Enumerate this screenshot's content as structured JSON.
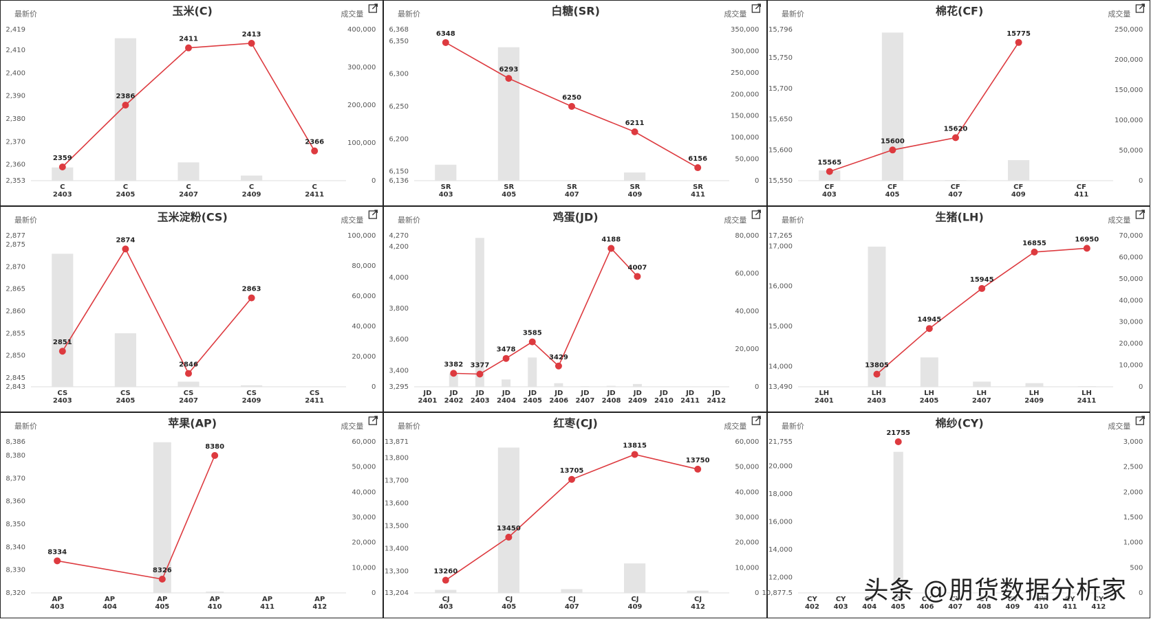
{
  "chart_data": [
    {
      "type": "bar-line",
      "title": "玉米(C)",
      "y_label": "最新价",
      "y2_label": "成交量",
      "categories": [
        "C\n2403",
        "C\n2405",
        "C\n2407",
        "C\n2409",
        "C\n2411"
      ],
      "series": [
        {
          "type": "bar",
          "axis": "y2",
          "color": "#e4e4e4",
          "values": [
            35000,
            377000,
            48500,
            13600,
            1000
          ]
        },
        {
          "type": "line",
          "color": "#dd3a3f",
          "values": [
            2359,
            2386,
            2411,
            2413,
            2366
          ]
        }
      ],
      "connect_nulls": true,
      "ylim": [
        2353,
        2419
      ],
      "yticks": [
        {
          "value": 2353,
          "label": "2,353"
        },
        {
          "value": 2360,
          "label": "2,360"
        },
        {
          "value": 2370,
          "label": "2,370"
        },
        {
          "value": 2380,
          "label": "2,380"
        },
        {
          "value": 2390,
          "label": "2,390"
        },
        {
          "value": 2400,
          "label": "2,400"
        },
        {
          "value": 2410,
          "label": "2,410"
        },
        {
          "value": 2419,
          "label": "2,419"
        }
      ],
      "y2lim": [
        0,
        400000
      ],
      "y2ticks": [
        0,
        {
          "value": 100000,
          "label": "100,000"
        },
        {
          "value": 200000,
          "label": "200,000"
        },
        {
          "value": 300000,
          "label": "300,000"
        },
        {
          "value": 400000,
          "label": "400,000"
        }
      ]
    },
    {
      "type": "bar-line",
      "title": "白糖(SR)",
      "y_label": "最新价",
      "y2_label": "成交量",
      "categories": [
        "SR\n403",
        "SR\n405",
        "SR\n407",
        "SR\n409",
        "SR\n411"
      ],
      "series": [
        {
          "type": "bar",
          "axis": "y2",
          "color": "#e4e4e4",
          "values": [
            37000,
            309000,
            1000,
            19000,
            500
          ]
        },
        {
          "type": "line",
          "color": "#dd3a3f",
          "values": [
            6348,
            6293,
            6250,
            6211,
            6156
          ]
        }
      ],
      "connect_nulls": true,
      "ylim": [
        6136,
        6368
      ],
      "yticks": [
        {
          "value": 6136,
          "label": "6,136"
        },
        {
          "value": 6150,
          "label": "6,150"
        },
        {
          "value": 6200,
          "label": "6,200"
        },
        {
          "value": 6250,
          "label": "6,250"
        },
        {
          "value": 6300,
          "label": "6,300"
        },
        {
          "value": 6350,
          "label": "6,350"
        },
        {
          "value": 6368,
          "label": "6,368"
        }
      ],
      "y2lim": [
        0,
        350000
      ],
      "y2ticks": [
        0,
        {
          "value": 50000,
          "label": "50,000"
        },
        {
          "value": 100000,
          "label": "100,000"
        },
        {
          "value": 150000,
          "label": "150,000"
        },
        {
          "value": 200000,
          "label": "200,000"
        },
        {
          "value": 250000,
          "label": "250,000"
        },
        {
          "value": 300000,
          "label": "300,000"
        },
        {
          "value": 350000,
          "label": "350,000"
        }
      ]
    },
    {
      "type": "bar-line",
      "title": "棉花(CF)",
      "y_label": "最新价",
      "y2_label": "成交量",
      "categories": [
        "CF\n403",
        "CF\n405",
        "CF\n407",
        "CF\n409",
        "CF\n411"
      ],
      "series": [
        {
          "type": "bar",
          "axis": "y2",
          "color": "#e4e4e4",
          "values": [
            17000,
            245000,
            1000,
            34000,
            0
          ]
        },
        {
          "type": "line",
          "color": "#dd3a3f",
          "values": [
            15565,
            15600,
            15620,
            15775,
            null
          ]
        }
      ],
      "connect_nulls": true,
      "ylim": [
        15550,
        15796
      ],
      "yticks": [
        {
          "value": 15550,
          "label": "15,550"
        },
        {
          "value": 15600,
          "label": "15,600"
        },
        {
          "value": 15650,
          "label": "15,650"
        },
        {
          "value": 15700,
          "label": "15,700"
        },
        {
          "value": 15750,
          "label": "15,750"
        },
        {
          "value": 15796,
          "label": "15,796"
        }
      ],
      "y2lim": [
        0,
        250000
      ],
      "y2ticks": [
        0,
        {
          "value": 50000,
          "label": "50,000"
        },
        {
          "value": 100000,
          "label": "100,000"
        },
        {
          "value": 150000,
          "label": "150,000"
        },
        {
          "value": 200000,
          "label": "200,000"
        },
        {
          "value": 250000,
          "label": "250,000"
        }
      ]
    },
    {
      "type": "bar-line",
      "title": "玉米淀粉(CS)",
      "y_label": "最新价",
      "y2_label": "成交量",
      "categories": [
        "CS\n2403",
        "CS\n2405",
        "CS\n2407",
        "CS\n2409",
        "CS\n2411"
      ],
      "series": [
        {
          "type": "bar",
          "axis": "y2",
          "color": "#e4e4e4",
          "values": [
            88000,
            35400,
            3400,
            1000,
            0
          ]
        },
        {
          "type": "line",
          "color": "#dd3a3f",
          "values": [
            2851,
            2874,
            2846,
            2863,
            null
          ]
        }
      ],
      "connect_nulls": true,
      "ylim": [
        2843,
        2877
      ],
      "yticks": [
        {
          "value": 2843,
          "label": "2,843"
        },
        {
          "value": 2845,
          "label": "2,845"
        },
        {
          "value": 2850,
          "label": "2,850"
        },
        {
          "value": 2855,
          "label": "2,855"
        },
        {
          "value": 2860,
          "label": "2,860"
        },
        {
          "value": 2865,
          "label": "2,865"
        },
        {
          "value": 2870,
          "label": "2,870"
        },
        {
          "value": 2875,
          "label": "2,875"
        },
        {
          "value": 2877,
          "label": "2,877"
        }
      ],
      "y2lim": [
        0,
        100000
      ],
      "y2ticks": [
        0,
        {
          "value": 20000,
          "label": "20,000"
        },
        {
          "value": 40000,
          "label": "40,000"
        },
        {
          "value": 60000,
          "label": "60,000"
        },
        {
          "value": 80000,
          "label": "80,000"
        },
        {
          "value": 100000,
          "label": "100,000"
        }
      ]
    },
    {
      "type": "bar-line",
      "title": "鸡蛋(JD)",
      "y_label": "最新价",
      "y2_label": "成交量",
      "categories": [
        "JD\n2401",
        "JD\n2402",
        "JD\n2403",
        "JD\n2404",
        "JD\n2405",
        "JD\n2406",
        "JD\n2407",
        "JD\n2408",
        "JD\n2409",
        "JD\n2410",
        "JD\n2411",
        "JD\n2412"
      ],
      "series": [
        {
          "type": "bar",
          "axis": "y2",
          "color": "#e4e4e4",
          "values": [
            0,
            7000,
            78800,
            3900,
            15500,
            1900,
            300,
            500,
            1500,
            0,
            0,
            0
          ]
        },
        {
          "type": "line",
          "color": "#dd3a3f",
          "values": [
            null,
            3382,
            3377,
            3478,
            3585,
            3429,
            null,
            4188,
            4007,
            null,
            null,
            null
          ]
        }
      ],
      "connect_nulls": true,
      "ylim": [
        3295,
        4270
      ],
      "yticks": [
        {
          "value": 3295,
          "label": "3,295"
        },
        {
          "value": 3400,
          "label": "3,400"
        },
        {
          "value": 3600,
          "label": "3,600"
        },
        {
          "value": 3800,
          "label": "3,800"
        },
        {
          "value": 4000,
          "label": "4,000"
        },
        {
          "value": 4200,
          "label": "4,200"
        },
        {
          "value": 4270,
          "label": "4,270"
        }
      ],
      "y2lim": [
        0,
        80000
      ],
      "y2ticks": [
        0,
        {
          "value": 20000,
          "label": "20,000"
        },
        {
          "value": 40000,
          "label": "40,000"
        },
        {
          "value": 60000,
          "label": "60,000"
        },
        {
          "value": 80000,
          "label": "80,000"
        }
      ]
    },
    {
      "type": "bar-line",
      "title": "生猪(LH)",
      "y_label": "最新价",
      "y2_label": "成交量",
      "categories": [
        "LH\n2401",
        "LH\n2403",
        "LH\n2405",
        "LH\n2407",
        "LH\n2409",
        "LH\n2411"
      ],
      "series": [
        {
          "type": "bar",
          "axis": "y2",
          "color": "#e4e4e4",
          "values": [
            0,
            64900,
            13600,
            2400,
            1700,
            300
          ]
        },
        {
          "type": "line",
          "color": "#dd3a3f",
          "values": [
            null,
            13805,
            14945,
            15945,
            16855,
            16950
          ]
        }
      ],
      "connect_nulls": true,
      "ylim": [
        13490,
        17265
      ],
      "yticks": [
        {
          "value": 13490,
          "label": "13,490"
        },
        {
          "value": 14000,
          "label": "14,000"
        },
        {
          "value": 15000,
          "label": "15,000"
        },
        {
          "value": 16000,
          "label": "16,000"
        },
        {
          "value": 17000,
          "label": "17,000"
        },
        {
          "value": 17265,
          "label": "17,265"
        }
      ],
      "y2lim": [
        0,
        70000
      ],
      "y2ticks": [
        0,
        {
          "value": 10000,
          "label": "10,000"
        },
        {
          "value": 20000,
          "label": "20,000"
        },
        {
          "value": 30000,
          "label": "30,000"
        },
        {
          "value": 40000,
          "label": "40,000"
        },
        {
          "value": 50000,
          "label": "50,000"
        },
        {
          "value": 60000,
          "label": "60,000"
        },
        {
          "value": 70000,
          "label": "70,000"
        }
      ]
    },
    {
      "type": "bar-line",
      "title": "苹果(AP)",
      "y_label": "最新价",
      "y2_label": "成交量",
      "categories": [
        "AP\n403",
        "AP\n404",
        "AP\n405",
        "AP\n410",
        "AP\n411",
        "AP\n412"
      ],
      "series": [
        {
          "type": "bar",
          "axis": "y2",
          "color": "#e4e4e4",
          "values": [
            0,
            0,
            59800,
            500,
            0,
            0
          ]
        },
        {
          "type": "line",
          "color": "#dd3a3f",
          "values": [
            8334,
            null,
            8326,
            8380,
            null,
            null
          ]
        }
      ],
      "connect_nulls": true,
      "ylim": [
        8320,
        8386
      ],
      "yticks": [
        {
          "value": 8320,
          "label": "8,320"
        },
        {
          "value": 8330,
          "label": "8,330"
        },
        {
          "value": 8340,
          "label": "8,340"
        },
        {
          "value": 8350,
          "label": "8,350"
        },
        {
          "value": 8360,
          "label": "8,360"
        },
        {
          "value": 8370,
          "label": "8,370"
        },
        {
          "value": 8380,
          "label": "8,380"
        },
        {
          "value": 8386,
          "label": "8,386"
        }
      ],
      "y2lim": [
        0,
        60000
      ],
      "y2ticks": [
        0,
        {
          "value": 10000,
          "label": "10,000"
        },
        {
          "value": 20000,
          "label": "20,000"
        },
        {
          "value": 30000,
          "label": "30,000"
        },
        {
          "value": 40000,
          "label": "40,000"
        },
        {
          "value": 50000,
          "label": "50,000"
        },
        {
          "value": 60000,
          "label": "60,000"
        }
      ]
    },
    {
      "type": "bar-line",
      "title": "红枣(CJ)",
      "y_label": "最新价",
      "y2_label": "成交量",
      "categories": [
        "CJ\n403",
        "CJ\n405",
        "CJ\n407",
        "CJ\n409",
        "CJ\n412"
      ],
      "series": [
        {
          "type": "bar",
          "axis": "y2",
          "color": "#e4e4e4",
          "values": [
            1200,
            57700,
            1500,
            11700,
            900
          ]
        },
        {
          "type": "line",
          "color": "#dd3a3f",
          "values": [
            13260,
            13450,
            13705,
            13815,
            13750
          ]
        }
      ],
      "connect_nulls": true,
      "ylim": [
        13204,
        13871
      ],
      "yticks": [
        {
          "value": 13204,
          "label": "13,204"
        },
        {
          "value": 13300,
          "label": "13,300"
        },
        {
          "value": 13400,
          "label": "13,400"
        },
        {
          "value": 13500,
          "label": "13,500"
        },
        {
          "value": 13600,
          "label": "13,600"
        },
        {
          "value": 13700,
          "label": "13,700"
        },
        {
          "value": 13800,
          "label": "13,800"
        },
        {
          "value": 13871,
          "label": "13,871"
        }
      ],
      "y2lim": [
        0,
        60000
      ],
      "y2ticks": [
        0,
        {
          "value": 10000,
          "label": "10,000"
        },
        {
          "value": 20000,
          "label": "20,000"
        },
        {
          "value": 30000,
          "label": "30,000"
        },
        {
          "value": 40000,
          "label": "40,000"
        },
        {
          "value": 50000,
          "label": "50,000"
        },
        {
          "value": 60000,
          "label": "60,000"
        }
      ]
    },
    {
      "type": "bar-line",
      "title": "棉纱(CY)",
      "y_label": "最新价",
      "y2_label": "成交量",
      "categories": [
        "CY\n402",
        "CY\n403",
        "CY\n404",
        "CY\n405",
        "CY\n406",
        "CY\n407",
        "CY\n408",
        "CY\n409",
        "CY\n410",
        "CY\n411",
        "CY\n412"
      ],
      "series": [
        {
          "type": "bar",
          "axis": "y2",
          "color": "#e4e4e4",
          "values": [
            0,
            0,
            0,
            2800,
            0,
            0,
            0,
            0,
            0,
            0,
            0
          ]
        },
        {
          "type": "line",
          "color": "#dd3a3f",
          "values": [
            null,
            null,
            null,
            21755,
            null,
            null,
            null,
            null,
            null,
            null,
            null
          ]
        }
      ],
      "connect_nulls": true,
      "ylim": [
        10877.5,
        21755
      ],
      "yticks": [
        {
          "value": 10877.5,
          "label": "10,877.5"
        },
        {
          "value": 12000,
          "label": "12,000"
        },
        {
          "value": 14000,
          "label": "14,000"
        },
        {
          "value": 16000,
          "label": "16,000"
        },
        {
          "value": 18000,
          "label": "18,000"
        },
        {
          "value": 20000,
          "label": "20,000"
        },
        {
          "value": 21755,
          "label": "21,755"
        }
      ],
      "y2lim": [
        0,
        3000
      ],
      "y2ticks": [
        0,
        500,
        {
          "value": 1000,
          "label": "1,000"
        },
        {
          "value": 1500,
          "label": "1,500"
        },
        {
          "value": 2000,
          "label": "2,000"
        },
        {
          "value": 2500,
          "label": "2,500"
        },
        {
          "value": 3000,
          "label": "3,000"
        }
      ]
    }
  ],
  "watermark": "头条 @朋货数据分析家"
}
